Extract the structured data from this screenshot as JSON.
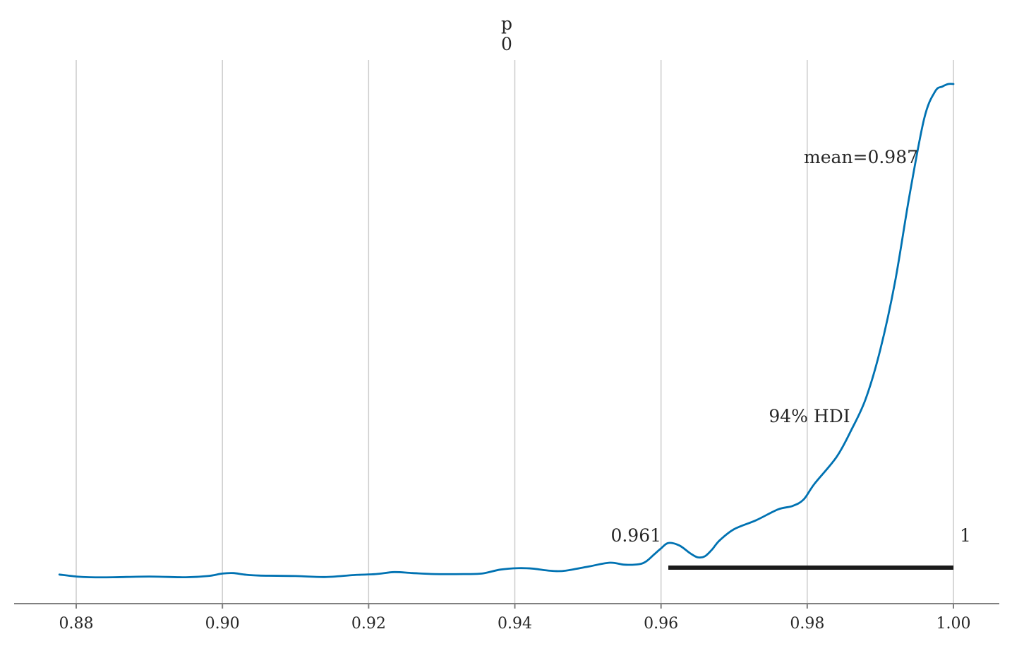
{
  "chart_data": {
    "type": "line",
    "title": "p",
    "subtitle": "0",
    "xlabel": "",
    "ylabel": "",
    "xlim": [
      0.8773,
      1.0063
    ],
    "ylim": [
      0,
      1
    ],
    "grid": "vertical",
    "x_ticks": [
      "0.88",
      "0.90",
      "0.92",
      "0.94",
      "0.96",
      "0.98",
      "1.00"
    ],
    "tick_values": [
      0.88,
      0.9,
      0.92,
      0.94,
      0.96,
      0.98,
      1.0
    ],
    "series": [
      {
        "color": "#0072b2",
        "x": [
          0.8777,
          0.88,
          0.882,
          0.885,
          0.89,
          0.895,
          0.898,
          0.9,
          0.9015,
          0.903,
          0.905,
          0.91,
          0.914,
          0.918,
          0.921,
          0.9235,
          0.926,
          0.929,
          0.933,
          0.9355,
          0.938,
          0.9405,
          0.9425,
          0.944,
          0.9455,
          0.947,
          0.95,
          0.953,
          0.955,
          0.957,
          0.958,
          0.959,
          0.96,
          0.961,
          0.9625,
          0.964,
          0.965,
          0.966,
          0.967,
          0.968,
          0.97,
          0.973,
          0.976,
          0.978,
          0.9795,
          0.981,
          0.984,
          0.986,
          0.988,
          0.99,
          0.992,
          0.994,
          0.996,
          0.9975,
          0.9985,
          0.9993,
          1.0
        ],
        "y": [
          0.006,
          0.002,
          0.0005,
          0.0005,
          0.002,
          0.0005,
          0.003,
          0.008,
          0.009,
          0.006,
          0.004,
          0.003,
          0.001,
          0.005,
          0.007,
          0.011,
          0.009,
          0.007,
          0.007,
          0.008,
          0.016,
          0.019,
          0.018,
          0.015,
          0.013,
          0.014,
          0.022,
          0.03,
          0.026,
          0.027,
          0.033,
          0.046,
          0.059,
          0.07,
          0.065,
          0.049,
          0.041,
          0.043,
          0.057,
          0.075,
          0.098,
          0.116,
          0.138,
          0.145,
          0.158,
          0.19,
          0.244,
          0.298,
          0.362,
          0.462,
          0.598,
          0.775,
          0.93,
          0.985,
          0.995,
          1.0,
          1.0
        ]
      }
    ],
    "mean_label": "mean=0.987",
    "hdi_label": "94% HDI",
    "hdi_low_label": "0.961",
    "hdi_high_label": "1",
    "hdi_interval": [
      0.961,
      1.0
    ],
    "hdi_color": "#1a1a1a"
  }
}
